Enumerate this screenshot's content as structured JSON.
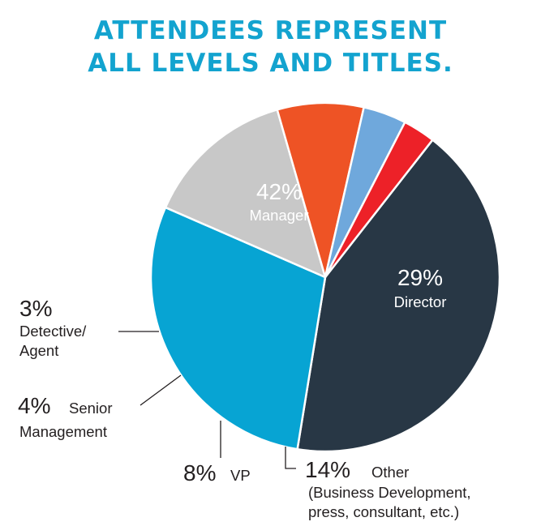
{
  "title_line1": "ATTENDEES REPRESENT",
  "title_line2": "ALL LEVELS AND TITLES.",
  "colors": {
    "title": "#13a3cf",
    "manager": "#283745",
    "director": "#07a4d3",
    "other": "#c8c8c8",
    "vp": "#ee5325",
    "senior_management": "#6fa8dc",
    "detective_agent": "#ed2128",
    "label_dark": "#231f20"
  },
  "chart_data": {
    "type": "pie",
    "title": "ATTENDEES REPRESENT ALL LEVELS AND TITLES.",
    "slices": [
      {
        "key": "manager",
        "value": 42,
        "pct_label": "42%",
        "label": "Manager",
        "color": "#283745"
      },
      {
        "key": "director",
        "value": 29,
        "pct_label": "29%",
        "label": "Director",
        "color": "#07a4d3"
      },
      {
        "key": "other",
        "value": 14,
        "pct_label": "14%",
        "label": "Other",
        "sublabel_line1": "(Business Development,",
        "sublabel_line2": "press, consultant, etc.)",
        "color": "#c8c8c8"
      },
      {
        "key": "vp",
        "value": 8,
        "pct_label": "8%",
        "label": "VP",
        "color": "#ee5325"
      },
      {
        "key": "senior_management",
        "value": 4,
        "pct_label": "4%",
        "label": "Senior",
        "label_line2": "Management",
        "color": "#6fa8dc"
      },
      {
        "key": "detective_agent",
        "value": 3,
        "pct_label": "3%",
        "label": "Detective/",
        "label_line2": "Agent",
        "color": "#ed2128"
      }
    ]
  }
}
